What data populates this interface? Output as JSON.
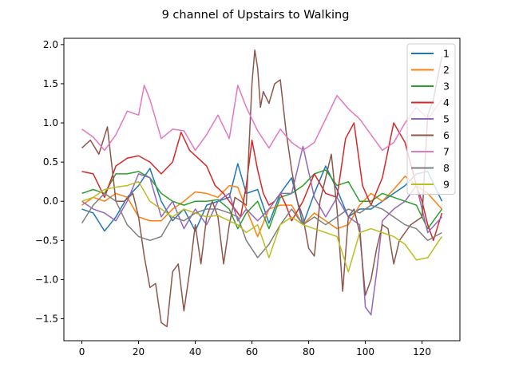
{
  "chart_data": {
    "type": "line",
    "title": "9 channel of Upstairs to Walking",
    "xlabel": "",
    "ylabel": "",
    "xlim": [
      -6.35,
      133.35
    ],
    "ylim": [
      -1.78,
      2.08
    ],
    "xticks": [
      0,
      20,
      40,
      60,
      80,
      100,
      120
    ],
    "yticks": [
      -1.5,
      -1.0,
      -0.5,
      0.0,
      0.5,
      1.0,
      1.5,
      2.0
    ],
    "ytick_labels": [
      "−1.5",
      "−1.0",
      "−0.5",
      "0.0",
      "0.5",
      "1.0",
      "1.5",
      "2.0"
    ],
    "grid": false,
    "legend_position": "top-right",
    "series": [
      {
        "name": "1",
        "color": "#1f77b4",
        "x": [
          0,
          4,
          8,
          12,
          16,
          20,
          24,
          28,
          32,
          36,
          40,
          44,
          48,
          52,
          55,
          58,
          62,
          66,
          70,
          74,
          78,
          82,
          86,
          90,
          94,
          98,
          102,
          106,
          110,
          114,
          118,
          122,
          127
        ],
        "y": [
          -0.1,
          -0.15,
          -0.38,
          -0.2,
          0.05,
          0.2,
          0.42,
          0.0,
          -0.25,
          -0.1,
          -0.38,
          -0.05,
          0.0,
          0.05,
          0.48,
          0.1,
          0.15,
          -0.28,
          0.1,
          0.3,
          -0.3,
          0.1,
          0.45,
          0.15,
          -0.2,
          -0.1,
          -0.1,
          0.0,
          0.1,
          0.2,
          0.35,
          0.38,
          0.0
        ]
      },
      {
        "name": "2",
        "color": "#ff7f0e",
        "x": [
          0,
          4,
          8,
          12,
          16,
          20,
          24,
          28,
          32,
          36,
          40,
          44,
          48,
          52,
          55,
          58,
          62,
          66,
          70,
          74,
          78,
          82,
          86,
          90,
          94,
          98,
          102,
          106,
          110,
          114,
          118,
          122,
          127
        ],
        "y": [
          -0.05,
          0.05,
          0.0,
          0.1,
          0.05,
          -0.2,
          -0.25,
          -0.25,
          -0.1,
          0.0,
          0.12,
          0.1,
          0.05,
          0.2,
          0.18,
          -0.1,
          -0.45,
          -0.1,
          -0.05,
          -0.05,
          -0.3,
          -0.15,
          -0.25,
          -0.35,
          -0.3,
          -0.05,
          0.1,
          0.0,
          0.15,
          0.32,
          0.2,
          0.1,
          -0.1
        ]
      },
      {
        "name": "3",
        "color": "#2ca02c",
        "x": [
          0,
          4,
          8,
          12,
          16,
          20,
          24,
          28,
          32,
          36,
          40,
          44,
          48,
          52,
          55,
          58,
          62,
          66,
          70,
          74,
          78,
          82,
          86,
          90,
          94,
          98,
          102,
          106,
          110,
          114,
          118,
          122,
          127
        ],
        "y": [
          0.1,
          0.15,
          0.1,
          0.35,
          0.35,
          0.38,
          0.3,
          0.1,
          0.0,
          -0.05,
          0.0,
          0.0,
          0.02,
          -0.1,
          -0.35,
          -0.15,
          0.0,
          -0.35,
          0.05,
          0.1,
          0.2,
          0.35,
          0.4,
          0.2,
          0.25,
          0.0,
          0.0,
          0.1,
          0.05,
          0.0,
          -0.05,
          -0.35,
          -0.1
        ]
      },
      {
        "name": "4",
        "color": "#d62728",
        "x": [
          0,
          4,
          8,
          12,
          16,
          20,
          24,
          28,
          32,
          35,
          38,
          41,
          44,
          47,
          50,
          53,
          56,
          58,
          60,
          62,
          64,
          66,
          68,
          70,
          72,
          74,
          78,
          82,
          86,
          90,
          93,
          96,
          99,
          102,
          106,
          110,
          114,
          118,
          120,
          122,
          124,
          127
        ],
        "y": [
          0.38,
          0.35,
          0.05,
          0.45,
          0.55,
          0.58,
          0.5,
          0.35,
          0.5,
          0.88,
          0.65,
          0.55,
          0.45,
          0.2,
          0.1,
          -0.05,
          -0.2,
          0.2,
          0.78,
          0.4,
          0.1,
          -0.05,
          0.0,
          0.1,
          -0.05,
          -0.25,
          0.0,
          0.35,
          0.1,
          0.05,
          0.8,
          1.0,
          0.2,
          -0.05,
          0.3,
          1.0,
          0.75,
          0.2,
          0.0,
          -0.3,
          -0.5,
          -0.15
        ]
      },
      {
        "name": "5",
        "color": "#9467bd",
        "x": [
          0,
          4,
          8,
          12,
          16,
          20,
          24,
          28,
          32,
          36,
          40,
          44,
          48,
          52,
          55,
          58,
          62,
          66,
          70,
          74,
          78,
          82,
          86,
          90,
          94,
          98,
          100,
          102,
          104,
          106,
          110,
          114,
          118,
          122,
          127
        ],
        "y": [
          0.0,
          -0.1,
          -0.15,
          -0.25,
          0.0,
          0.35,
          0.3,
          -0.2,
          0.0,
          -0.35,
          -0.1,
          -0.3,
          0.0,
          0.1,
          -0.25,
          -0.1,
          -0.25,
          -0.1,
          0.1,
          0.1,
          0.7,
          0.05,
          -0.2,
          0.05,
          -0.2,
          -0.3,
          -1.35,
          -1.45,
          -0.9,
          -0.25,
          -0.1,
          0.0,
          0.2,
          -0.4,
          -0.2
        ]
      },
      {
        "name": "6",
        "color": "#8c564b",
        "x": [
          0,
          3,
          6,
          9,
          12,
          15,
          18,
          20,
          22,
          24,
          26,
          28,
          30,
          32,
          34,
          36,
          38,
          40,
          42,
          44,
          46,
          48,
          50,
          52,
          54,
          56,
          58,
          60,
          61,
          62,
          63,
          64,
          66,
          68,
          70,
          72,
          74,
          76,
          78,
          80,
          82,
          84,
          86,
          88,
          90,
          92,
          94,
          96,
          98,
          100,
          102,
          104,
          106,
          108,
          110,
          112,
          114,
          116,
          118,
          120,
          122,
          124,
          127
        ],
        "y": [
          0.68,
          0.78,
          0.6,
          0.95,
          0.0,
          0.0,
          0.1,
          -0.2,
          -0.7,
          -1.1,
          -1.05,
          -1.55,
          -1.6,
          -0.9,
          -0.8,
          -1.4,
          -0.9,
          -0.3,
          -0.8,
          -0.2,
          0.0,
          -0.2,
          -0.8,
          -0.3,
          0.05,
          0.0,
          -0.05,
          1.5,
          1.93,
          1.7,
          1.2,
          1.4,
          1.25,
          1.5,
          1.55,
          0.9,
          0.4,
          0.0,
          -0.2,
          -0.6,
          -0.7,
          0.0,
          0.3,
          0.6,
          -0.1,
          -1.15,
          -0.2,
          -0.1,
          -0.4,
          -1.2,
          -1.0,
          -0.6,
          -0.3,
          -0.35,
          -0.8,
          -0.5,
          -0.4,
          -0.3,
          -0.25,
          -0.2,
          1.1,
          1.3,
          1.85
        ]
      },
      {
        "name": "7",
        "color": "#e377c2",
        "x": [
          0,
          4,
          8,
          12,
          16,
          20,
          22,
          24,
          28,
          32,
          36,
          40,
          44,
          48,
          52,
          55,
          58,
          62,
          66,
          70,
          74,
          78,
          82,
          86,
          90,
          94,
          98,
          102,
          106,
          110,
          114,
          118,
          122,
          127
        ],
        "y": [
          0.92,
          0.82,
          0.65,
          0.85,
          1.15,
          1.1,
          1.48,
          1.3,
          0.8,
          0.92,
          0.9,
          0.65,
          0.85,
          1.1,
          0.8,
          1.48,
          1.2,
          0.9,
          0.68,
          0.92,
          0.75,
          0.65,
          0.75,
          1.05,
          1.35,
          1.18,
          1.05,
          0.85,
          0.65,
          0.75,
          1.0,
          1.2,
          1.05,
          1.3
        ]
      },
      {
        "name": "8",
        "color": "#7f7f7f",
        "x": [
          0,
          4,
          8,
          12,
          16,
          20,
          24,
          28,
          32,
          36,
          40,
          44,
          48,
          52,
          55,
          58,
          62,
          66,
          70,
          74,
          78,
          82,
          86,
          90,
          94,
          98,
          102,
          106,
          110,
          114,
          118,
          122,
          127
        ],
        "y": [
          -0.28,
          -0.05,
          0.1,
          0.0,
          -0.3,
          -0.45,
          -0.5,
          -0.45,
          -0.2,
          -0.25,
          -0.15,
          -0.1,
          -0.1,
          -0.15,
          -0.2,
          -0.5,
          -0.72,
          -0.55,
          -0.3,
          -0.1,
          -0.3,
          -0.2,
          -0.3,
          -0.2,
          -0.1,
          -0.15,
          -0.05,
          -0.1,
          -0.2,
          -0.3,
          -0.35,
          -0.5,
          -0.4
        ]
      },
      {
        "name": "9",
        "color": "#bcbd22",
        "x": [
          0,
          4,
          8,
          12,
          16,
          20,
          24,
          28,
          32,
          36,
          40,
          44,
          48,
          52,
          55,
          58,
          62,
          66,
          70,
          74,
          78,
          82,
          86,
          90,
          94,
          98,
          102,
          106,
          110,
          114,
          118,
          122,
          127
        ],
        "y": [
          0.0,
          0.05,
          0.15,
          0.18,
          0.2,
          0.25,
          0.0,
          -0.1,
          -0.2,
          -0.1,
          -0.15,
          -0.2,
          -0.18,
          -0.25,
          -0.3,
          -0.4,
          -0.3,
          -0.72,
          -0.3,
          -0.2,
          -0.3,
          -0.35,
          -0.4,
          -0.45,
          -0.9,
          -0.4,
          -0.35,
          -0.4,
          -0.45,
          -0.55,
          -0.75,
          -0.72,
          -0.45
        ]
      }
    ]
  }
}
